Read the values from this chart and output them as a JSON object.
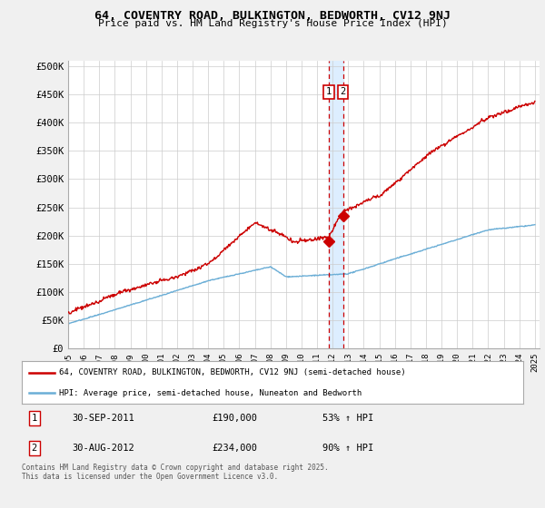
{
  "title": "64, COVENTRY ROAD, BULKINGTON, BEDWORTH, CV12 9NJ",
  "subtitle": "Price paid vs. HM Land Registry's House Price Index (HPI)",
  "ylabel_ticks": [
    "£0",
    "£50K",
    "£100K",
    "£150K",
    "£200K",
    "£250K",
    "£300K",
    "£350K",
    "£400K",
    "£450K",
    "£500K"
  ],
  "ytick_values": [
    0,
    50000,
    100000,
    150000,
    200000,
    250000,
    300000,
    350000,
    400000,
    450000,
    500000
  ],
  "legend_line1": "64, COVENTRY ROAD, BULKINGTON, BEDWORTH, CV12 9NJ (semi-detached house)",
  "legend_line2": "HPI: Average price, semi-detached house, Nuneaton and Bedworth",
  "annotation1_label": "1",
  "annotation1_date": "30-SEP-2011",
  "annotation1_price": "£190,000",
  "annotation1_hpi": "53% ↑ HPI",
  "annotation1_year": 2011.75,
  "annotation1_value": 190000,
  "annotation2_label": "2",
  "annotation2_date": "30-AUG-2012",
  "annotation2_price": "£234,000",
  "annotation2_hpi": "90% ↑ HPI",
  "annotation2_year": 2012.67,
  "annotation2_value": 234000,
  "footer": "Contains HM Land Registry data © Crown copyright and database right 2025.\nThis data is licensed under the Open Government Licence v3.0.",
  "hpi_color": "#6baed6",
  "price_color": "#cc0000",
  "bg_color": "#f0f0f0",
  "plot_bg_color": "#ffffff",
  "annotation_box_color": "#cc0000",
  "shade_color": "#ddeeff"
}
